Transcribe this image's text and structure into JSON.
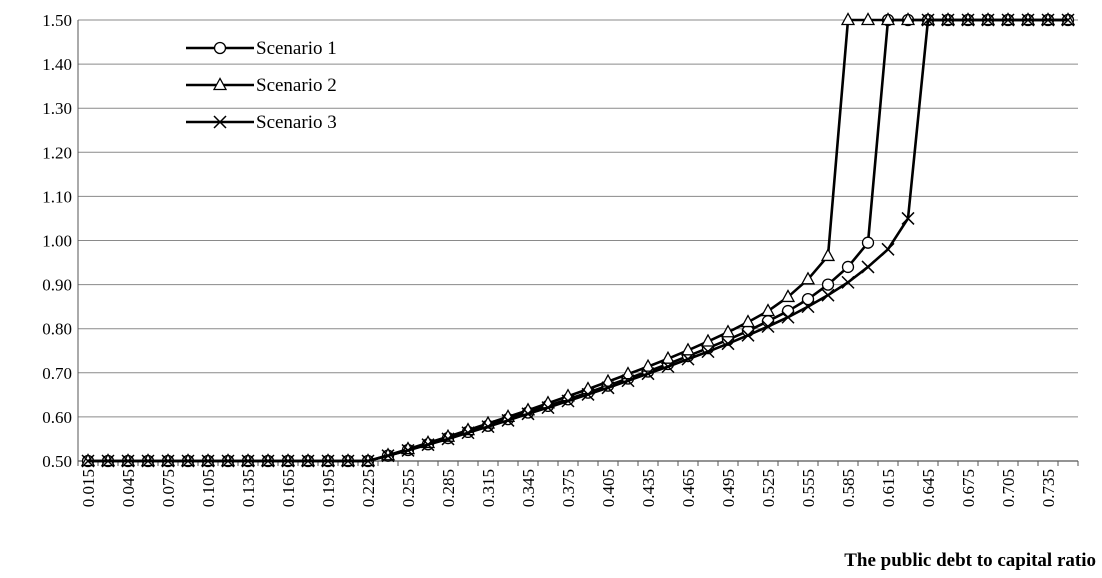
{
  "chart_data": {
    "type": "line",
    "title": "",
    "xlabel": "The public debt to capital ratio",
    "ylabel": "",
    "ylim": [
      0.5,
      1.5
    ],
    "y_ticks": [
      "0.50",
      "0.60",
      "0.70",
      "0.80",
      "0.90",
      "1.00",
      "1.10",
      "1.20",
      "1.30",
      "1.40",
      "1.50"
    ],
    "x": [
      0.015,
      0.03,
      0.045,
      0.06,
      0.075,
      0.09,
      0.105,
      0.12,
      0.135,
      0.15,
      0.165,
      0.18,
      0.195,
      0.21,
      0.225,
      0.24,
      0.255,
      0.27,
      0.285,
      0.3,
      0.315,
      0.33,
      0.345,
      0.36,
      0.375,
      0.39,
      0.405,
      0.42,
      0.435,
      0.45,
      0.465,
      0.48,
      0.495,
      0.51,
      0.525,
      0.54,
      0.555,
      0.57,
      0.585,
      0.6,
      0.615,
      0.63,
      0.645,
      0.66,
      0.675,
      0.69,
      0.705,
      0.72,
      0.735,
      0.75
    ],
    "x_tick_labels": [
      "0.015",
      "0.045",
      "0.075",
      "0.105",
      "0.135",
      "0.165",
      "0.195",
      "0.225",
      "0.255",
      "0.285",
      "0.315",
      "0.345",
      "0.375",
      "0.405",
      "0.435",
      "0.465",
      "0.495",
      "0.525",
      "0.555",
      "0.585",
      "0.615",
      "0.645",
      "0.675",
      "0.705",
      "0.735"
    ],
    "grid": true,
    "legend_position": "top-left",
    "series": [
      {
        "name": "Scenario 1",
        "marker": "circle",
        "values": [
          0.5,
          0.5,
          0.5,
          0.5,
          0.5,
          0.5,
          0.5,
          0.5,
          0.5,
          0.5,
          0.5,
          0.5,
          0.5,
          0.5,
          0.5,
          0.512,
          0.525,
          0.538,
          0.552,
          0.566,
          0.58,
          0.595,
          0.61,
          0.625,
          0.64,
          0.655,
          0.671,
          0.687,
          0.703,
          0.72,
          0.738,
          0.756,
          0.775,
          0.795,
          0.817,
          0.84,
          0.867,
          0.9,
          0.94,
          0.995,
          1.5,
          1.5,
          1.5,
          1.5,
          1.5,
          1.5,
          1.5,
          1.5,
          1.5,
          1.5
        ]
      },
      {
        "name": "Scenario 2",
        "marker": "triangle",
        "values": [
          0.5,
          0.5,
          0.5,
          0.5,
          0.5,
          0.5,
          0.5,
          0.5,
          0.5,
          0.5,
          0.5,
          0.5,
          0.5,
          0.5,
          0.5,
          0.513,
          0.527,
          0.541,
          0.555,
          0.57,
          0.585,
          0.6,
          0.615,
          0.631,
          0.647,
          0.663,
          0.68,
          0.697,
          0.714,
          0.732,
          0.751,
          0.771,
          0.792,
          0.815,
          0.84,
          0.872,
          0.912,
          0.965,
          1.5,
          1.5,
          1.5,
          1.5,
          1.5,
          1.5,
          1.5,
          1.5,
          1.5,
          1.5,
          1.5,
          1.5
        ]
      },
      {
        "name": "Scenario 3",
        "marker": "x",
        "values": [
          0.5,
          0.5,
          0.5,
          0.5,
          0.5,
          0.5,
          0.5,
          0.5,
          0.5,
          0.5,
          0.5,
          0.5,
          0.5,
          0.5,
          0.5,
          0.512,
          0.524,
          0.537,
          0.55,
          0.564,
          0.578,
          0.592,
          0.607,
          0.621,
          0.636,
          0.651,
          0.666,
          0.682,
          0.698,
          0.714,
          0.731,
          0.748,
          0.766,
          0.785,
          0.805,
          0.826,
          0.85,
          0.876,
          0.905,
          0.94,
          0.98,
          1.05,
          1.5,
          1.5,
          1.5,
          1.5,
          1.5,
          1.5,
          1.5,
          1.5
        ]
      }
    ]
  }
}
